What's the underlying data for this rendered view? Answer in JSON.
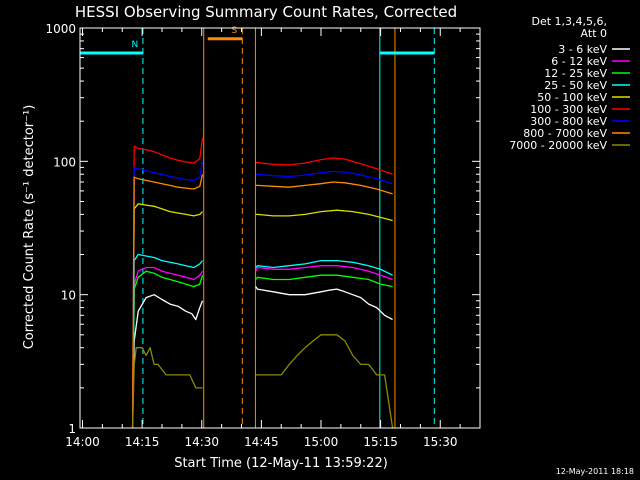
{
  "chart_data": {
    "type": "line",
    "title": "HESSI Observing Summary Count Rates, Corrected",
    "xlabel": "Start Time (12-May-11 13:59:22)",
    "ylabel": "Corrected Count Rate (s⁻¹ detector⁻¹)",
    "x_unit": "minutes since 14:00",
    "xlim": [
      -0.63,
      100
    ],
    "ylim": [
      1,
      1000
    ],
    "y_scale": "log",
    "x_ticks": [
      {
        "t": 0,
        "label": "14:00"
      },
      {
        "t": 15,
        "label": "14:15"
      },
      {
        "t": 30,
        "label": "14:30"
      },
      {
        "t": 45,
        "label": "14:45"
      },
      {
        "t": 60,
        "label": "15:00"
      },
      {
        "t": 75,
        "label": "15:15"
      },
      {
        "t": 90,
        "label": "15:30"
      }
    ],
    "y_ticks": [
      {
        "v": 1,
        "label": "1"
      },
      {
        "v": 10,
        "label": "10"
      },
      {
        "v": 100,
        "label": "100"
      },
      {
        "v": 1000,
        "label": "1000"
      }
    ],
    "legend_header": [
      "Det 1,3,4,5,6,",
      "Att 0"
    ],
    "legend_position": "top-right outside",
    "series": [
      {
        "name": "3 - 6 keV",
        "color": "#ffffff",
        "segments": [
          {
            "x": [
              12.6,
              13.0,
              14,
              16,
              18,
              20,
              22,
              24,
              26,
              27.5,
              28.5,
              29.5,
              30.2
            ],
            "y": [
              1.0,
              4.5,
              7.5,
              9.5,
              10,
              9.2,
              8.5,
              8.2,
              7.5,
              7.2,
              6.5,
              8,
              9
            ]
          },
          {
            "x": [
              43.6,
              44,
              48,
              52,
              56,
              60,
              62,
              64,
              66,
              68,
              70,
              72,
              74,
              76,
              78
            ],
            "y": [
              11.5,
              11,
              10.5,
              10,
              10,
              10.5,
              10.8,
              11,
              10.5,
              10,
              9.5,
              8.5,
              8,
              7,
              6.5
            ]
          }
        ]
      },
      {
        "name": "6 - 12 keV",
        "color": "#ff00ff",
        "segments": [
          {
            "x": [
              12.6,
              13.0,
              14,
              16,
              18,
              20,
              22,
              24,
              26,
              28,
              29.5,
              30.2
            ],
            "y": [
              1.0,
              12,
              15,
              16,
              16,
              15,
              14.5,
              14,
              13.5,
              13,
              14,
              15
            ]
          },
          {
            "x": [
              43.6,
              44,
              48,
              52,
              56,
              60,
              64,
              68,
              72,
              75,
              78
            ],
            "y": [
              15,
              16,
              15.5,
              15.5,
              16,
              16.5,
              16.5,
              16,
              15,
              14,
              13
            ]
          }
        ]
      },
      {
        "name": "12 - 25 keV",
        "color": "#00ff00",
        "segments": [
          {
            "x": [
              12.6,
              13.0,
              14,
              16,
              18,
              20,
              22,
              24,
              26,
              28,
              29.5,
              30.2
            ],
            "y": [
              1.0,
              11,
              13.5,
              15,
              14.5,
              13.5,
              13,
              12.5,
              12,
              11.5,
              12,
              14
            ]
          },
          {
            "x": [
              43.6,
              44,
              48,
              52,
              56,
              60,
              64,
              68,
              72,
              75,
              78
            ],
            "y": [
              13,
              13.5,
              13,
              13,
              13.5,
              14,
              14,
              13.5,
              13,
              12,
              11.5
            ]
          }
        ]
      },
      {
        "name": "25 - 50 keV",
        "color": "#00ffff",
        "segments": [
          {
            "x": [
              12.6,
              13.0,
              14,
              16,
              18,
              20,
              22,
              24,
              26,
              28,
              29.5,
              30.2
            ],
            "y": [
              1.0,
              18,
              20,
              19.5,
              19,
              18,
              17.5,
              17,
              16.5,
              16,
              17,
              18
            ]
          },
          {
            "x": [
              43.6,
              44,
              48,
              52,
              56,
              60,
              64,
              68,
              72,
              75,
              78
            ],
            "y": [
              16,
              16.5,
              16,
              16.5,
              17,
              18,
              18,
              17.5,
              16.5,
              15.5,
              14
            ]
          }
        ]
      },
      {
        "name": "50 - 100 keV",
        "color": "#dddd00",
        "segments": [
          {
            "x": [
              12.6,
              13.0,
              14,
              16,
              18,
              20,
              22,
              24,
              26,
              28,
              29.5,
              30.2
            ],
            "y": [
              1.0,
              44,
              48,
              47,
              46,
              44,
              42,
              41,
              40,
              39,
              40,
              42
            ]
          },
          {
            "x": [
              43.6,
              44,
              48,
              52,
              56,
              60,
              64,
              68,
              72,
              75,
              78
            ],
            "y": [
              40,
              40,
              39,
              39,
              40,
              42,
              43,
              42,
              40,
              38,
              36
            ]
          }
        ]
      },
      {
        "name": "100 - 300 keV",
        "color": "#ff0000",
        "segments": [
          {
            "x": [
              12.6,
              13.0,
              14,
              16,
              18,
              20,
              22,
              24,
              26,
              28,
              29.5,
              30.2
            ],
            "y": [
              1.0,
              130,
              125,
              122,
              118,
              112,
              106,
              102,
              99,
              97,
              105,
              150
            ]
          },
          {
            "x": [
              43.6,
              44,
              48,
              52,
              56,
              60,
              63,
              66,
              70,
              74,
              78
            ],
            "y": [
              98,
              98,
              95,
              94,
              97,
              103,
              106,
              104,
              96,
              88,
              80
            ]
          }
        ]
      },
      {
        "name": "300 - 800 keV",
        "color": "#0000ff",
        "segments": [
          {
            "x": [
              12.6,
              13.0,
              14,
              16,
              18,
              20,
              22,
              24,
              26,
              28,
              29.5,
              30.2
            ],
            "y": [
              1.0,
              90,
              88,
              85,
              82,
              80,
              77,
              75,
              73,
              72,
              76,
              100
            ]
          },
          {
            "x": [
              43.6,
              44,
              48,
              52,
              56,
              60,
              63,
              66,
              70,
              74,
              78
            ],
            "y": [
              80,
              80,
              78,
              77,
              79,
              82,
              84,
              83,
              79,
              74,
              68
            ]
          }
        ]
      },
      {
        "name": "800 - 7000 keV",
        "color": "#ff8c00",
        "segments": [
          {
            "x": [
              12.6,
              13.0,
              14,
              16,
              18,
              20,
              22,
              24,
              26,
              28,
              29.5,
              30.2
            ],
            "y": [
              1.0,
              76,
              74,
              72,
              70,
              68,
              66,
              64,
              63,
              62,
              65,
              80
            ]
          },
          {
            "x": [
              43.6,
              44,
              48,
              52,
              56,
              60,
              63,
              66,
              70,
              74,
              78
            ],
            "y": [
              66,
              66,
              65,
              64,
              66,
              68,
              70,
              69,
              66,
              62,
              57
            ]
          }
        ]
      },
      {
        "name": "7000 - 20000 keV",
        "color": "#8b8b00",
        "segments": [
          {
            "x": [
              12.6,
              13.0,
              13.5,
              15,
              16,
              17,
              18,
              19,
              21,
              23,
              25,
              27,
              28.5,
              30.2
            ],
            "y": [
              1.0,
              3,
              4,
              4,
              3.5,
              4,
              3,
              3,
              2.5,
              2.5,
              2.5,
              2.5,
              2,
              2
            ]
          },
          {
            "x": [
              43.6,
              44,
              46,
              48,
              50,
              52,
              54,
              56,
              58,
              60,
              62,
              64,
              66,
              68,
              70,
              72,
              74,
              76,
              78
            ],
            "y": [
              2.5,
              2.5,
              2.5,
              2.5,
              2.5,
              3,
              3.5,
              4,
              4.5,
              5,
              5,
              5,
              4.5,
              3.5,
              3,
              3,
              2.5,
              2.5,
              1.0
            ]
          }
        ]
      }
    ],
    "annotations": [
      {
        "type": "vline",
        "t": 15.2,
        "color": "#00ffff",
        "dashed": true
      },
      {
        "type": "vline",
        "t": 40.2,
        "color": "#ff8c00",
        "dashed": true
      },
      {
        "type": "vline",
        "t": 74.8,
        "color": "#00ffff",
        "dashed": false
      },
      {
        "type": "vline",
        "t": 88.5,
        "color": "#00ffff",
        "dashed": true
      },
      {
        "type": "vline",
        "t": 30.5,
        "color": "#ff8c00",
        "dashed": false
      },
      {
        "type": "vline",
        "t": 78.6,
        "color": "#ff8c00",
        "dashed": false
      },
      {
        "type": "vline",
        "t": 43.5,
        "color": "#ff8c00",
        "dashed": false
      },
      {
        "type": "hbar",
        "t0": -0.63,
        "t1": 15.2,
        "v": 650,
        "color": "#00ffff",
        "label": "N"
      },
      {
        "type": "hbar",
        "t0": 31.5,
        "t1": 40.2,
        "v": 830,
        "color": "#ff8c00",
        "label": "S"
      },
      {
        "type": "hbar",
        "t0": 74.8,
        "t1": 88.5,
        "v": 650,
        "color": "#00ffff",
        "label": ""
      }
    ]
  },
  "footer_timestamp": "12-May-2011 18:18"
}
